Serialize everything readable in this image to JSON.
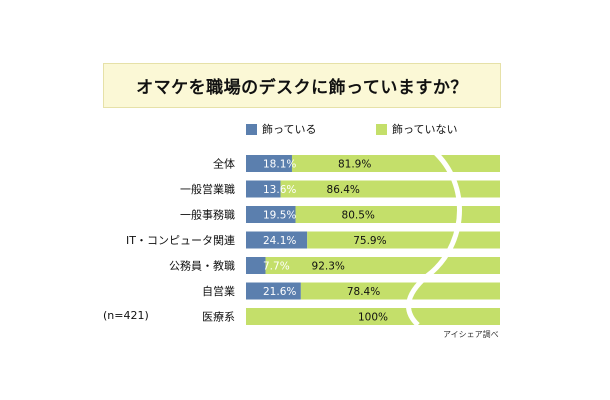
{
  "title": "オマケを職場のデスクに飾っていますか？",
  "sample_note": "(n=421)",
  "source_note": "アイシェア調べ",
  "colors": {
    "series_a": "#5b7fae",
    "series_b": "#c4df6a",
    "title_bg": "#fbf8d6"
  },
  "chart_data": {
    "type": "bar",
    "orientation": "horizontal",
    "stacked": "percent",
    "categories": [
      "全体",
      "一般営業職",
      "一般事務職",
      "IT・コンピュータ関連",
      "公務員・教職",
      "自営業",
      "医療系"
    ],
    "series": [
      {
        "name": "飾っている",
        "values": [
          18.1,
          13.6,
          19.5,
          24.1,
          7.7,
          21.6,
          0
        ]
      },
      {
        "name": "飾っていない",
        "values": [
          81.9,
          86.4,
          80.5,
          75.9,
          92.3,
          78.4,
          100
        ]
      }
    ],
    "value_labels": [
      [
        "18.1%",
        "81.9%"
      ],
      [
        "13.6%",
        "86.4%"
      ],
      [
        "19.5%",
        "80.5%"
      ],
      [
        "24.1%",
        "75.9%"
      ],
      [
        "7.7%",
        "92.3%"
      ],
      [
        "21.6%",
        "78.4%"
      ],
      [
        "",
        "100%"
      ]
    ],
    "xlim": [
      0,
      100
    ],
    "legend_position": "top",
    "grid": false
  }
}
